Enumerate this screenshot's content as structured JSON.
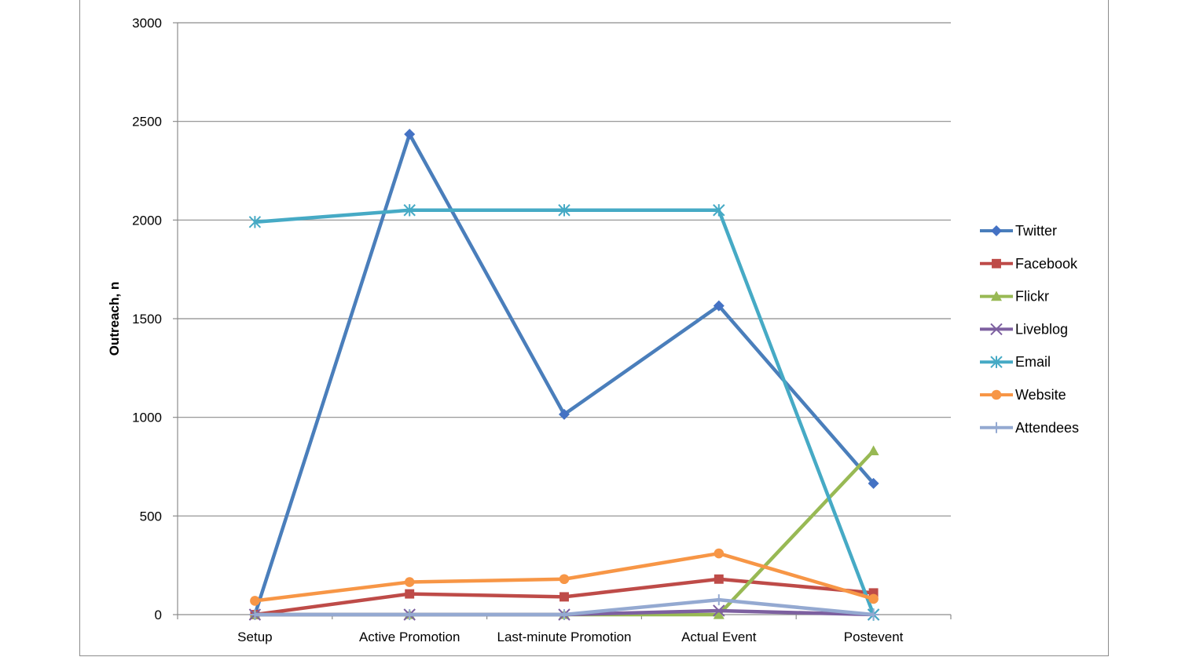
{
  "chart_data": {
    "type": "line",
    "title": "",
    "xlabel": "",
    "ylabel": "Outreach, n",
    "ylim": [
      0,
      3000
    ],
    "yticks": [
      "0",
      "500",
      "1000",
      "1500",
      "2000",
      "2500",
      "3000"
    ],
    "grid": true,
    "legend_position": "right",
    "categories": [
      "Setup",
      "Active Promotion",
      "Last-minute Promotion",
      "Actual Event",
      "Postevent"
    ],
    "series": [
      {
        "name": "Twitter",
        "color": "#4472C4",
        "line": "#4A7EBB",
        "marker": "diamond",
        "values": [
          0,
          2435,
          1015,
          1565,
          665
        ]
      },
      {
        "name": "Facebook",
        "color": "#BE4B48",
        "line": "#BE4B48",
        "marker": "square",
        "values": [
          0,
          105,
          90,
          180,
          110
        ]
      },
      {
        "name": "Flickr",
        "color": "#98B954",
        "line": "#98B954",
        "marker": "triangle",
        "values": [
          0,
          0,
          0,
          0,
          830
        ]
      },
      {
        "name": "Liveblog",
        "color": "#7D60A0",
        "line": "#7D60A0",
        "marker": "x",
        "values": [
          0,
          0,
          0,
          20,
          0
        ]
      },
      {
        "name": "Email",
        "color": "#46AAC5",
        "line": "#46AAC5",
        "marker": "star",
        "values": [
          1990,
          2050,
          2050,
          2050,
          0
        ]
      },
      {
        "name": "Website",
        "color": "#F79646",
        "line": "#F79646",
        "marker": "circle",
        "values": [
          70,
          165,
          180,
          310,
          80
        ]
      },
      {
        "name": "Attendees",
        "color": "#94A9D1",
        "line": "#94A9D1",
        "marker": "plus",
        "values": [
          0,
          0,
          0,
          75,
          0
        ]
      }
    ]
  }
}
